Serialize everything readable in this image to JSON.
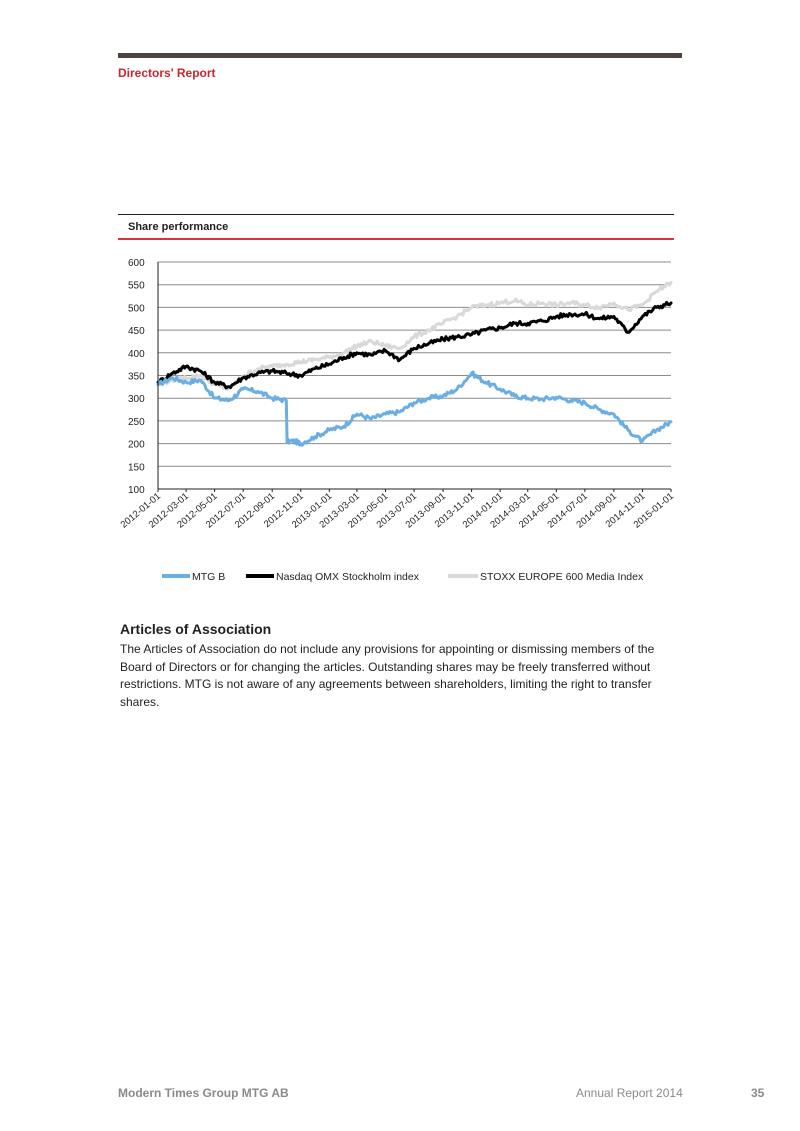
{
  "header": {
    "section_label": "Directors' Report"
  },
  "chart_data": {
    "type": "line",
    "title": "Share performance",
    "xlabel": "",
    "ylabel": "",
    "ylim": [
      100,
      600
    ],
    "yticks": [
      100,
      150,
      200,
      250,
      300,
      350,
      400,
      450,
      500,
      550,
      600
    ],
    "grid": true,
    "legend_position": "bottom",
    "x_tick_labels": [
      "2012-01-01",
      "2012-03-01",
      "2012-05-01",
      "2012-07-01",
      "2012-09-01",
      "2012-11-01",
      "2013-01-01",
      "2013-03-01",
      "2013-05-01",
      "2013-07-01",
      "2013-09-01",
      "2013-11-01",
      "2014-01-01",
      "2014-03-01",
      "2014-05-01",
      "2014-07-01",
      "2014-09-01",
      "2014-11-01",
      "2015-01-01"
    ],
    "series": [
      {
        "name": "MTG B",
        "color": "#6aaee3",
        "x": [
          "2012-01-01",
          "2012-02-01",
          "2012-03-01",
          "2012-04-01",
          "2012-05-01",
          "2012-06-01",
          "2012-07-01",
          "2012-08-01",
          "2012-09-01",
          "2012-10-01",
          "2012-10-20",
          "2012-11-01",
          "2012-12-01",
          "2013-01-01",
          "2013-02-01",
          "2013-03-01",
          "2013-04-01",
          "2013-05-01",
          "2013-06-01",
          "2013-07-01",
          "2013-08-01",
          "2013-09-01",
          "2013-10-01",
          "2013-11-01",
          "2013-12-01",
          "2014-01-01",
          "2014-02-01",
          "2014-03-01",
          "2014-04-01",
          "2014-05-01",
          "2014-06-01",
          "2014-07-01",
          "2014-08-01",
          "2014-09-01",
          "2014-10-01",
          "2014-11-01",
          "2014-12-01",
          "2015-01-01"
        ],
        "values": [
          330,
          345,
          335,
          340,
          300,
          295,
          320,
          315,
          300,
          295,
          205,
          200,
          215,
          230,
          238,
          265,
          255,
          265,
          270,
          290,
          300,
          305,
          320,
          355,
          335,
          320,
          305,
          300,
          298,
          302,
          295,
          290,
          275,
          265,
          230,
          205,
          230,
          248
        ]
      },
      {
        "name": "Nasdaq OMX Stockholm index",
        "color": "#000000",
        "x": [
          "2012-01-01",
          "2012-02-01",
          "2012-03-01",
          "2012-04-01",
          "2012-05-01",
          "2012-06-01",
          "2012-07-01",
          "2012-08-01",
          "2012-09-01",
          "2012-10-01",
          "2012-11-01",
          "2012-12-01",
          "2013-01-01",
          "2013-02-01",
          "2013-03-01",
          "2013-04-01",
          "2013-05-01",
          "2013-06-01",
          "2013-07-01",
          "2013-08-01",
          "2013-09-01",
          "2013-10-01",
          "2013-11-01",
          "2013-12-01",
          "2014-01-01",
          "2014-02-01",
          "2014-03-01",
          "2014-04-01",
          "2014-05-01",
          "2014-06-01",
          "2014-07-01",
          "2014-08-01",
          "2014-09-01",
          "2014-10-01",
          "2014-11-01",
          "2014-12-01",
          "2015-01-01"
        ],
        "values": [
          335,
          355,
          370,
          360,
          335,
          325,
          345,
          355,
          360,
          355,
          350,
          365,
          375,
          390,
          400,
          395,
          405,
          385,
          410,
          420,
          430,
          435,
          440,
          450,
          455,
          465,
          465,
          470,
          480,
          485,
          485,
          475,
          480,
          445,
          480,
          500,
          510
        ]
      },
      {
        "name": "STOXX EUROPE 600 Media Index",
        "color": "#d9d9d9",
        "x": [
          "2012-01-01",
          "2012-02-01",
          "2012-03-01",
          "2012-04-01",
          "2012-05-01",
          "2012-06-01",
          "2012-07-01",
          "2012-08-01",
          "2012-09-01",
          "2012-10-01",
          "2012-11-01",
          "2012-12-01",
          "2013-01-01",
          "2013-02-01",
          "2013-03-01",
          "2013-04-01",
          "2013-05-01",
          "2013-06-01",
          "2013-07-01",
          "2013-08-01",
          "2013-09-01",
          "2013-10-01",
          "2013-11-01",
          "2013-12-01",
          "2014-01-01",
          "2014-02-01",
          "2014-03-01",
          "2014-04-01",
          "2014-05-01",
          "2014-06-01",
          "2014-07-01",
          "2014-08-01",
          "2014-09-01",
          "2014-10-01",
          "2014-11-01",
          "2014-12-01",
          "2015-01-01"
        ],
        "values": [
          330,
          340,
          345,
          350,
          330,
          320,
          350,
          365,
          370,
          375,
          380,
          385,
          390,
          400,
          415,
          425,
          415,
          410,
          435,
          450,
          465,
          480,
          500,
          505,
          510,
          515,
          505,
          510,
          505,
          510,
          505,
          500,
          510,
          495,
          505,
          535,
          555
        ]
      }
    ]
  },
  "article": {
    "heading": "Articles of Association",
    "body": "The Articles of Association do not include any provisions for appointing or dismissing members of the Board of Directors or for changing the articles. Outstanding shares may be freely transferred without restrictions. MTG is not aware of any agreements between shareholders, limiting the right to transfer shares."
  },
  "footer": {
    "company": "Modern Times Group MTG AB",
    "report": "Annual Report 2014",
    "page": "35"
  }
}
